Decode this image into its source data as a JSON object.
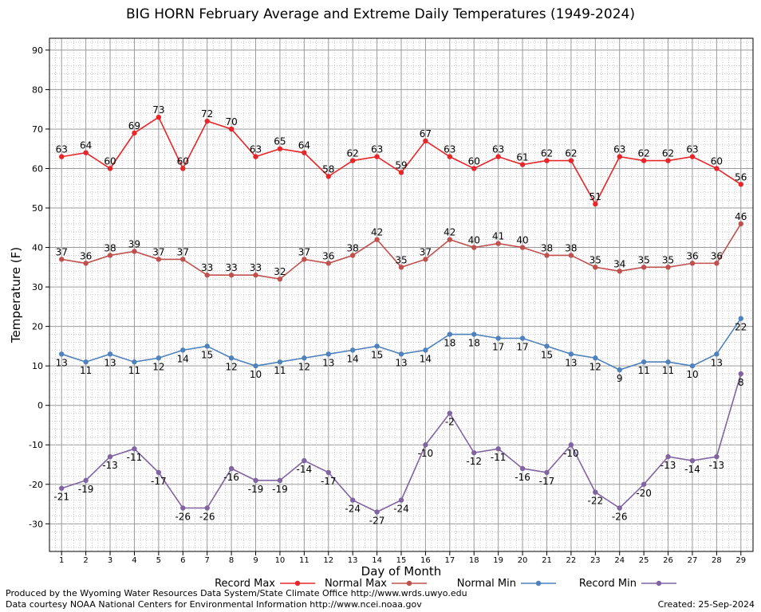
{
  "footer": {
    "credit_line_1": "Produced by the Wyoming Water Resources Data System/State Climate Office http://www.wrds.uwyo.edu",
    "credit_line_2": "Data courtesy NOAA National Centers for Environmental Information http://www.ncei.noaa.gov",
    "created": "Created:  25-Sep-2024"
  },
  "chart_data": {
    "type": "line",
    "title": "BIG HORN February Average and Extreme Daily Temperatures (1949-2024)",
    "xlabel": "Day of Month",
    "ylabel": "Temperature (F)",
    "xlim": [
      0.5,
      29.5
    ],
    "ylim": [
      -37,
      93
    ],
    "yticks": [
      -30,
      -20,
      -10,
      0,
      10,
      20,
      30,
      40,
      50,
      60,
      70,
      80,
      90
    ],
    "grid": true,
    "legend_position": "bottom",
    "x": [
      1,
      2,
      3,
      4,
      5,
      6,
      7,
      8,
      9,
      10,
      11,
      12,
      13,
      14,
      15,
      16,
      17,
      18,
      19,
      20,
      21,
      22,
      23,
      24,
      25,
      26,
      27,
      28,
      29
    ],
    "series": [
      {
        "name": "Record Max",
        "color": "#e8262a",
        "label_position": "above",
        "values": [
          63,
          64,
          60,
          69,
          73,
          60,
          72,
          70,
          63,
          65,
          64,
          58,
          62,
          63,
          59,
          67,
          63,
          60,
          63,
          61,
          62,
          62,
          51,
          63,
          62,
          62,
          63,
          60,
          56
        ]
      },
      {
        "name": "Normal Max",
        "color": "#c0504d",
        "label_position": "above",
        "values": [
          37,
          36,
          38,
          39,
          37,
          37,
          33,
          33,
          33,
          32,
          37,
          36,
          38,
          42,
          35,
          37,
          42,
          40,
          41,
          40,
          38,
          38,
          35,
          34,
          35,
          35,
          36,
          36,
          46
        ]
      },
      {
        "name": "Normal Min",
        "color": "#4f81bd",
        "label_position": "below",
        "values": [
          13,
          11,
          13,
          11,
          12,
          14,
          15,
          12,
          10,
          11,
          12,
          13,
          14,
          15,
          13,
          14,
          18,
          18,
          17,
          17,
          15,
          13,
          12,
          9,
          11,
          11,
          10,
          13,
          22
        ]
      },
      {
        "name": "Record Min",
        "color": "#8064a2",
        "label_position": "below",
        "values": [
          -21,
          -19,
          -13,
          -11,
          -17,
          -26,
          -26,
          -16,
          -19,
          -19,
          -14,
          -17,
          -24,
          -27,
          -24,
          -10,
          -2,
          -12,
          -11,
          -16,
          -17,
          -10,
          -22,
          -26,
          -20,
          -13,
          -14,
          -13,
          8
        ]
      }
    ]
  }
}
